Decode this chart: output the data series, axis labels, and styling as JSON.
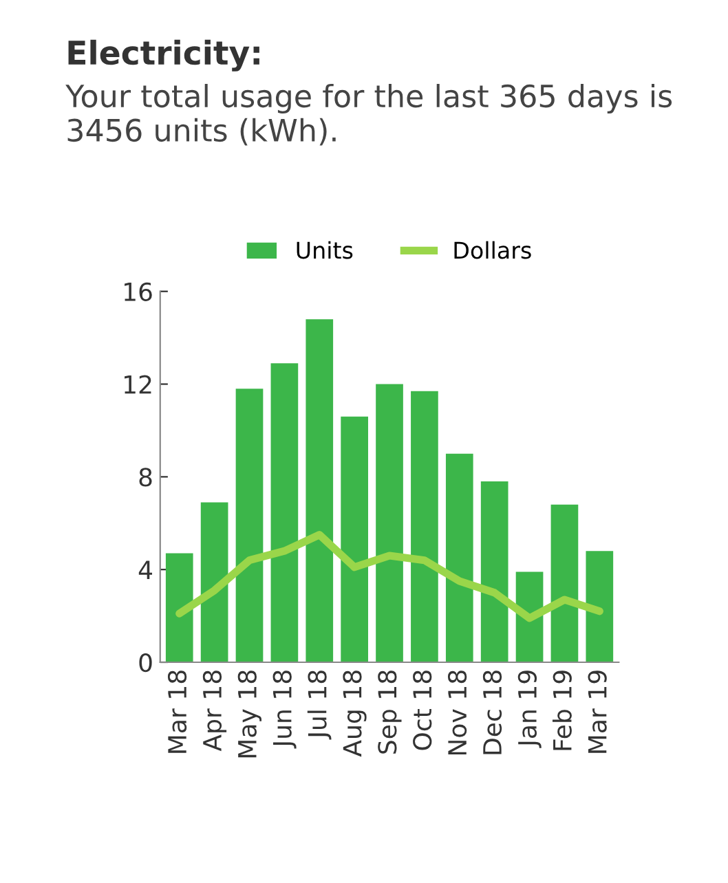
{
  "chart_data": {
    "type": "bar",
    "title": "Electricity:",
    "subtitle": "Your total usage for the last 365 days is 3456 units (kWh).",
    "categories": [
      "Mar 18",
      "Apr 18",
      "May 18",
      "Jun 18",
      "Jul 18",
      "Aug 18",
      "Sep 18",
      "Oct 18",
      "Nov 18",
      "Dec 18",
      "Jan 19",
      "Feb 19",
      "Mar 19"
    ],
    "series": [
      {
        "name": "Units",
        "color": "#3cb64a",
        "values": [
          4.7,
          6.9,
          11.8,
          12.9,
          14.8,
          10.6,
          12.0,
          11.7,
          9.0,
          7.8,
          3.9,
          6.8,
          4.8
        ]
      },
      {
        "name": "Dollars",
        "type": "line",
        "color": "#9ad64a",
        "values": [
          2.1,
          3.1,
          4.4,
          4.8,
          5.5,
          4.1,
          4.6,
          4.4,
          3.5,
          3.0,
          1.9,
          2.7,
          2.2
        ]
      }
    ],
    "ylim": [
      0,
      16
    ],
    "yticks": [
      0,
      4,
      8,
      12,
      16
    ],
    "grid": false,
    "legend": "top",
    "marker": "none",
    "line_style": "solid"
  }
}
